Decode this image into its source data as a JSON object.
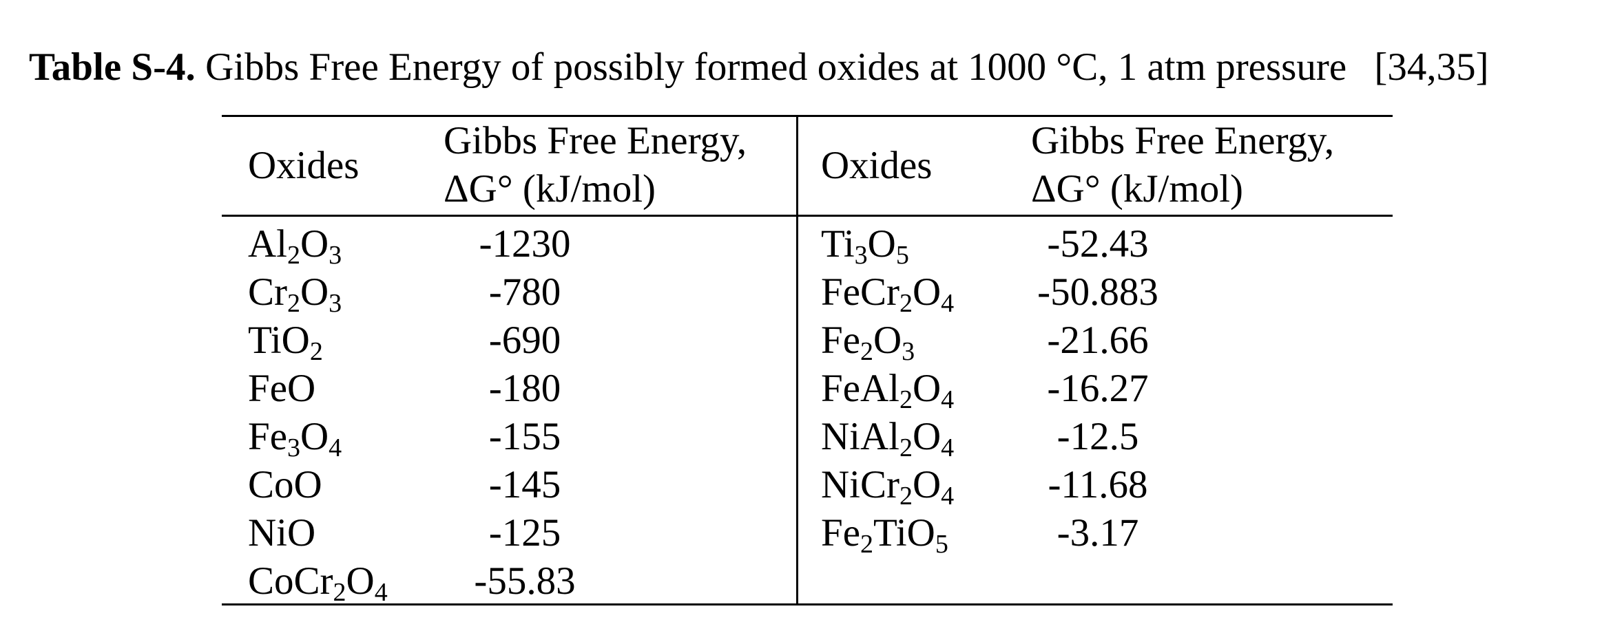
{
  "caption": {
    "label": "Table S-4.",
    "text": "Gibbs Free Energy of possibly formed oxides at 1000 °C, 1 atm pressure",
    "citation": "[34,35]"
  },
  "table": {
    "header": {
      "oxides": "Oxides",
      "energy_line1": "Gibbs Free Energy,",
      "energy_line2": "ΔG° (kJ/mol)"
    },
    "left_rows": [
      {
        "oxide": "Al<sub>2</sub>O<sub>3</sub>",
        "energy": "-1230"
      },
      {
        "oxide": "Cr<sub>2</sub>O<sub>3</sub>",
        "energy": "-780"
      },
      {
        "oxide": "TiO<sub>2</sub>",
        "energy": "-690"
      },
      {
        "oxide": "FeO",
        "energy": "-180"
      },
      {
        "oxide": "Fe<sub>3</sub>O<sub>4</sub>",
        "energy": "-155"
      },
      {
        "oxide": "CoO",
        "energy": "-145"
      },
      {
        "oxide": "NiO",
        "energy": "-125"
      },
      {
        "oxide": "CoCr<sub>2</sub>O<sub>4</sub>",
        "energy": "-55.83"
      }
    ],
    "right_rows": [
      {
        "oxide": "Ti<sub>3</sub>O<sub>5</sub>",
        "energy": "-52.43"
      },
      {
        "oxide": "FeCr<sub>2</sub>O<sub>4</sub>",
        "energy": "-50.883"
      },
      {
        "oxide": "Fe<sub>2</sub>O<sub>3</sub>",
        "energy": "-21.66"
      },
      {
        "oxide": "FeAl<sub>2</sub>O<sub>4</sub>",
        "energy": "-16.27"
      },
      {
        "oxide": "NiAl<sub>2</sub>O<sub>4</sub>",
        "energy": "-12.5"
      },
      {
        "oxide": "NiCr<sub>2</sub>O<sub>4</sub>",
        "energy": "-11.68"
      },
      {
        "oxide": "Fe<sub>2</sub>TiO<sub>5</sub>",
        "energy": "-3.17"
      }
    ]
  }
}
